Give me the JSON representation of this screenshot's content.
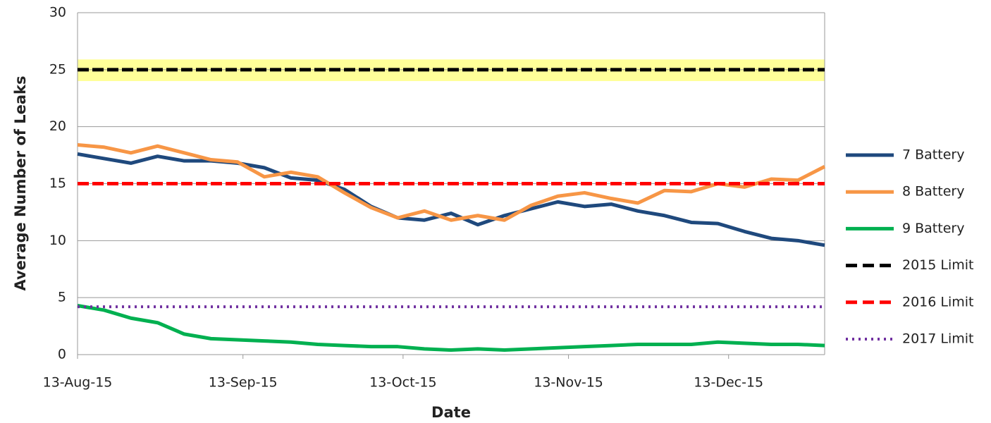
{
  "chart_data": {
    "type": "line",
    "xlabel": "Date",
    "ylabel": "Average Number of Leaks",
    "x": [
      "2015-08-13",
      "2015-08-18",
      "2015-08-23",
      "2015-08-28",
      "2015-09-02",
      "2015-09-07",
      "2015-09-12",
      "2015-09-17",
      "2015-09-22",
      "2015-09-27",
      "2015-10-02",
      "2015-10-07",
      "2015-10-12",
      "2015-10-17",
      "2015-10-22",
      "2015-10-27",
      "2015-11-01",
      "2015-11-06",
      "2015-11-11",
      "2015-11-16",
      "2015-11-21",
      "2015-11-26",
      "2015-12-01",
      "2015-12-06",
      "2015-12-11",
      "2015-12-16",
      "2015-12-21",
      "2015-12-26",
      "2015-12-31"
    ],
    "xlim": [
      "2015-08-13",
      "2015-12-31"
    ],
    "xticks": [
      {
        "value": "2015-08-13",
        "label": "13-Aug-15"
      },
      {
        "value": "2015-09-13",
        "label": "13-Sep-15"
      },
      {
        "value": "2015-10-13",
        "label": "13-Oct-15"
      },
      {
        "value": "2015-11-13",
        "label": "13-Nov-15"
      },
      {
        "value": "2015-12-13",
        "label": "13-Dec-15"
      }
    ],
    "ylim": [
      0,
      30
    ],
    "yticks": [
      0,
      5,
      10,
      15,
      20,
      25,
      30
    ],
    "grid": true,
    "highlight_band": {
      "ylim": [
        24,
        25.9
      ],
      "color": "#ffff99"
    },
    "series": [
      {
        "name": "7 Battery",
        "color": "#1f497d",
        "style": "solid",
        "values": [
          17.6,
          17.2,
          16.8,
          17.4,
          17.0,
          17.0,
          16.8,
          16.4,
          15.5,
          15.3,
          14.5,
          13.0,
          12.0,
          11.8,
          12.4,
          11.4,
          12.2,
          12.8,
          13.4,
          13.0,
          13.2,
          12.6,
          12.2,
          11.6,
          11.5,
          10.8,
          10.2,
          10.0,
          9.6
        ]
      },
      {
        "name": "8 Battery",
        "color": "#f79646",
        "style": "solid",
        "values": [
          18.4,
          18.2,
          17.7,
          18.3,
          17.7,
          17.1,
          16.9,
          15.6,
          16.0,
          15.6,
          14.2,
          12.9,
          12.0,
          12.6,
          11.8,
          12.2,
          11.8,
          13.1,
          13.9,
          14.2,
          13.7,
          13.3,
          14.4,
          14.3,
          15.0,
          14.7,
          15.4,
          15.3,
          16.5
        ]
      },
      {
        "name": "9 Battery",
        "color": "#00b050",
        "style": "solid",
        "values": [
          4.3,
          3.9,
          3.2,
          2.8,
          1.8,
          1.4,
          1.3,
          1.2,
          1.1,
          0.9,
          0.8,
          0.7,
          0.7,
          0.5,
          0.4,
          0.5,
          0.4,
          0.5,
          0.6,
          0.7,
          0.8,
          0.9,
          0.9,
          0.9,
          1.1,
          1.0,
          0.9,
          0.9,
          0.8
        ]
      },
      {
        "name": "2015 Limit",
        "color": "#000000",
        "style": "dash",
        "values": [
          25,
          25,
          25,
          25,
          25,
          25,
          25,
          25,
          25,
          25,
          25,
          25,
          25,
          25,
          25,
          25,
          25,
          25,
          25,
          25,
          25,
          25,
          25,
          25,
          25,
          25,
          25,
          25,
          25
        ]
      },
      {
        "name": "2016 Limit",
        "color": "#ff0000",
        "style": "dash",
        "values": [
          15,
          15,
          15,
          15,
          15,
          15,
          15,
          15,
          15,
          15,
          15,
          15,
          15,
          15,
          15,
          15,
          15,
          15,
          15,
          15,
          15,
          15,
          15,
          15,
          15,
          15,
          15,
          15,
          15
        ]
      },
      {
        "name": "2017 Limit",
        "color": "#7030a0",
        "style": "dot",
        "values": [
          4.2,
          4.2,
          4.2,
          4.2,
          4.2,
          4.2,
          4.2,
          4.2,
          4.2,
          4.2,
          4.2,
          4.2,
          4.2,
          4.2,
          4.2,
          4.2,
          4.2,
          4.2,
          4.2,
          4.2,
          4.2,
          4.2,
          4.2,
          4.2,
          4.2,
          4.2,
          4.2,
          4.2,
          4.2
        ]
      }
    ]
  }
}
